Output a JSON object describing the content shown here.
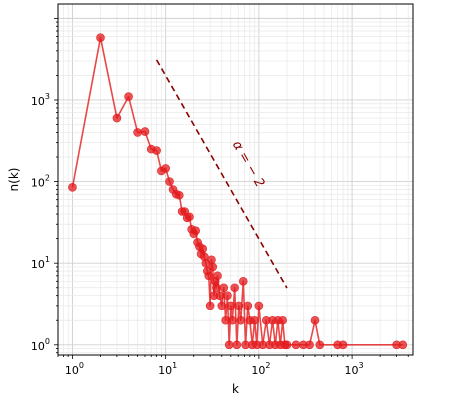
{
  "chart_data": {
    "type": "line",
    "xlabel": "k",
    "ylabel": "n(k)",
    "x_scale": "log",
    "y_scale": "log",
    "xlim": [
      0.7,
      4500
    ],
    "ylim": [
      0.75,
      15000
    ],
    "grid": true,
    "x_ticks": [
      1,
      10,
      100,
      1000
    ],
    "y_ticks": [
      1,
      10,
      100,
      1000
    ],
    "series": [
      {
        "color": "#e31a1c",
        "points": [
          [
            1,
            85
          ],
          [
            2,
            5800
          ],
          [
            3,
            600
          ],
          [
            4,
            1100
          ],
          [
            5,
            400
          ],
          [
            6,
            410
          ],
          [
            7,
            250
          ],
          [
            8,
            240
          ],
          [
            9,
            135
          ],
          [
            10,
            145
          ],
          [
            11,
            100
          ],
          [
            12,
            80
          ],
          [
            13,
            70
          ],
          [
            14,
            68
          ],
          [
            15,
            43
          ],
          [
            16,
            43
          ],
          [
            17,
            36
          ],
          [
            18,
            37
          ],
          [
            19,
            26
          ],
          [
            20,
            23
          ],
          [
            21,
            25
          ],
          [
            22,
            18
          ],
          [
            23,
            16
          ],
          [
            24,
            13
          ],
          [
            25,
            15
          ],
          [
            26,
            12
          ],
          [
            27,
            10
          ],
          [
            28,
            8
          ],
          [
            29,
            7
          ],
          [
            30,
            3
          ],
          [
            31,
            11
          ],
          [
            32,
            9
          ],
          [
            33,
            4
          ],
          [
            34,
            6
          ],
          [
            35,
            5
          ],
          [
            36,
            7
          ],
          [
            38,
            4
          ],
          [
            40,
            3
          ],
          [
            42,
            5
          ],
          [
            44,
            2
          ],
          [
            46,
            4
          ],
          [
            48,
            1
          ],
          [
            50,
            3
          ],
          [
            52,
            2
          ],
          [
            55,
            5
          ],
          [
            58,
            1
          ],
          [
            61,
            3
          ],
          [
            64,
            2
          ],
          [
            68,
            6
          ],
          [
            72,
            1
          ],
          [
            76,
            3
          ],
          [
            80,
            2
          ],
          [
            85,
            1
          ],
          [
            90,
            2
          ],
          [
            95,
            1
          ],
          [
            100,
            3
          ],
          [
            110,
            1
          ],
          [
            120,
            2
          ],
          [
            130,
            1
          ],
          [
            140,
            2
          ],
          [
            150,
            1
          ],
          [
            160,
            2
          ],
          [
            170,
            1
          ],
          [
            180,
            2
          ],
          [
            190,
            1
          ],
          [
            200,
            1
          ],
          [
            250,
            1
          ],
          [
            300,
            1
          ],
          [
            350,
            1
          ],
          [
            400,
            2
          ],
          [
            450,
            1
          ],
          [
            700,
            1
          ],
          [
            800,
            1
          ],
          [
            3000,
            1
          ],
          [
            3500,
            1
          ]
        ]
      }
    ],
    "reference_line": {
      "label": "α = − 2",
      "slope": -2,
      "x_range": [
        8,
        200
      ],
      "y_start": 3100,
      "color": "#8b0000",
      "style": "dashed"
    }
  }
}
